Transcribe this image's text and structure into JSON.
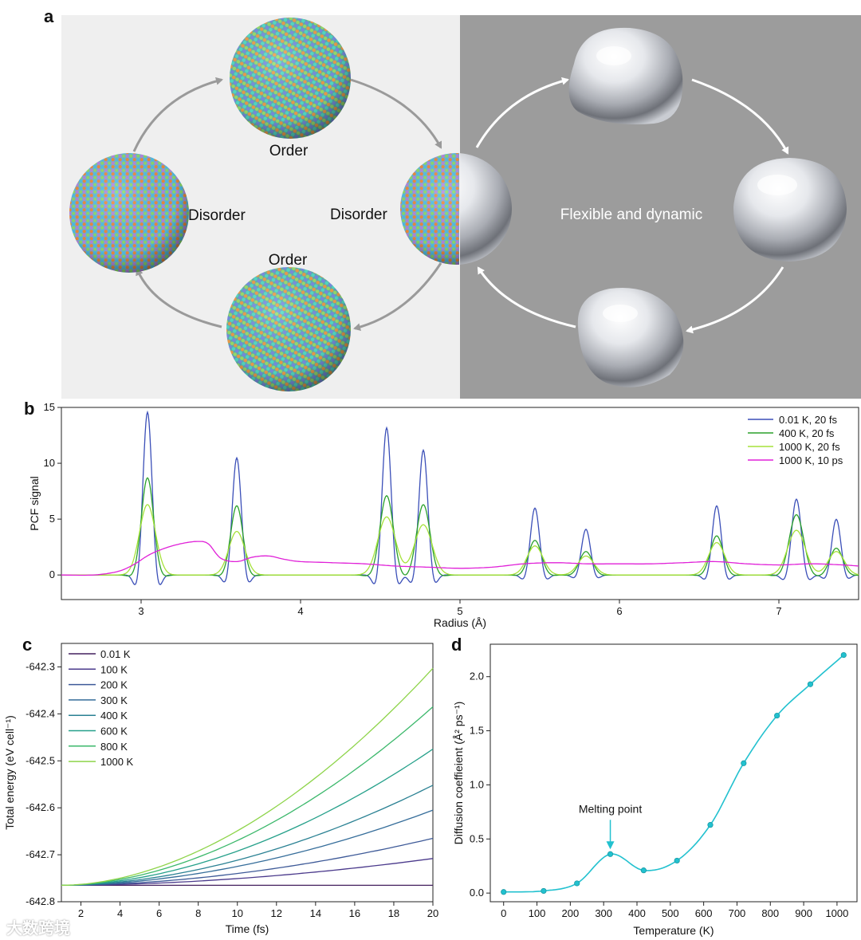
{
  "panels": {
    "a": {
      "letter": "a",
      "labels": {
        "order_top": "Order",
        "order_bottom": "Order",
        "disorder_left": "Disorder",
        "disorder_center": "Disorder",
        "flexible": "Flexible and dynamic"
      },
      "colors": {
        "left_bg": "#efefef",
        "right_bg": "#9c9c9c",
        "arrow_left": "#9a9a9a",
        "arrow_right": "#ffffff"
      }
    },
    "b": {
      "letter": "b"
    },
    "c": {
      "letter": "c"
    },
    "d": {
      "letter": "d"
    }
  },
  "watermark": "大数跨境",
  "chart_data": [
    {
      "id": "b",
      "type": "line",
      "title": "",
      "xlabel": "Radius (Å)",
      "ylabel": "PCF signal",
      "xlim": [
        2.5,
        7.5
      ],
      "ylim": [
        -2.2,
        15
      ],
      "xticks": [
        3,
        4,
        5,
        6,
        7
      ],
      "yticks": [
        0,
        5,
        10,
        15
      ],
      "legend_position": "top-right",
      "series": [
        {
          "name": "0.01  K, 20 fs",
          "color": "#3b4fb8",
          "peaks": [
            [
              3.04,
              14.6,
              0.028
            ],
            [
              3.6,
              10.5,
              0.028
            ],
            [
              4.54,
              13.2,
              0.028
            ],
            [
              4.77,
              11.2,
              0.028
            ],
            [
              5.47,
              6.0,
              0.028
            ],
            [
              5.79,
              4.1,
              0.028
            ],
            [
              6.61,
              6.2,
              0.028
            ],
            [
              7.11,
              6.8,
              0.03
            ],
            [
              7.36,
              5.0,
              0.028
            ]
          ],
          "undershoot": 1.25
        },
        {
          "name": "400   K, 20 fs",
          "color": "#2aa12a",
          "peaks": [
            [
              3.04,
              8.7,
              0.038
            ],
            [
              3.6,
              6.2,
              0.038
            ],
            [
              4.54,
              7.1,
              0.042
            ],
            [
              4.77,
              6.3,
              0.042
            ],
            [
              5.47,
              3.1,
              0.04
            ],
            [
              5.79,
              2.1,
              0.04
            ],
            [
              6.61,
              3.5,
              0.04
            ],
            [
              7.11,
              5.4,
              0.045
            ],
            [
              7.36,
              2.4,
              0.04
            ]
          ],
          "undershoot": 0.35
        },
        {
          "name": "1000 K, 20 fs",
          "color": "#a6e23a",
          "peaks": [
            [
              3.04,
              6.3,
              0.05
            ],
            [
              3.6,
              3.9,
              0.05
            ],
            [
              4.54,
              5.2,
              0.055
            ],
            [
              4.77,
              4.5,
              0.055
            ],
            [
              5.47,
              2.6,
              0.05
            ],
            [
              5.79,
              1.7,
              0.05
            ],
            [
              6.61,
              2.9,
              0.05
            ],
            [
              7.11,
              4.0,
              0.055
            ],
            [
              7.36,
              2.1,
              0.05
            ]
          ],
          "undershoot": 0.0
        },
        {
          "name": "1000 K, 10 ps",
          "color": "#e020d8",
          "x": [
            2.5,
            2.7,
            2.85,
            2.95,
            3.05,
            3.15,
            3.25,
            3.35,
            3.42,
            3.5,
            3.6,
            3.7,
            3.8,
            3.9,
            4.0,
            4.2,
            4.4,
            4.6,
            4.8,
            5.0,
            5.2,
            5.4,
            5.6,
            5.8,
            6.0,
            6.2,
            6.4,
            6.6,
            6.8,
            7.0,
            7.2,
            7.4,
            7.5
          ],
          "y": [
            0.0,
            0.0,
            0.3,
            0.9,
            1.8,
            2.4,
            2.8,
            3.0,
            2.8,
            1.5,
            1.2,
            1.6,
            1.7,
            1.4,
            1.2,
            1.1,
            1.0,
            0.8,
            0.7,
            0.6,
            0.7,
            1.0,
            1.1,
            1.0,
            1.0,
            1.0,
            1.1,
            1.2,
            1.0,
            0.9,
            1.0,
            0.9,
            0.8
          ]
        }
      ]
    },
    {
      "id": "c",
      "type": "line",
      "title": "",
      "xlabel": "Time (fs)",
      "ylabel": "Total energy (eV cell⁻¹)",
      "xlim": [
        1,
        20
      ],
      "ylim": [
        -642.8,
        -642.25
      ],
      "xticks": [
        2,
        4,
        6,
        8,
        10,
        12,
        14,
        16,
        18,
        20
      ],
      "yticks": [
        -642.8,
        -642.7,
        -642.6,
        -642.5,
        -642.4,
        -642.3
      ],
      "ytick_labels": [
        "-642.8",
        "-642.7",
        "-642.6",
        "-642.5",
        "-642.4",
        "-642.3"
      ],
      "legend_position": "top-left",
      "x_start": 1,
      "y_start": -642.765,
      "series": [
        {
          "name": "0.01  K",
          "color": "#44205f",
          "end": -642.765
        },
        {
          "name": "100    K",
          "color": "#4b3a8c",
          "end": -642.708
        },
        {
          "name": "200    K",
          "color": "#3e5a98",
          "end": -642.665
        },
        {
          "name": "300    K",
          "color": "#356d9a",
          "end": -642.605
        },
        {
          "name": "400    K",
          "color": "#2a8193",
          "end": -642.552
        },
        {
          "name": "600    K",
          "color": "#25a08a",
          "end": -642.475
        },
        {
          "name": "800    K",
          "color": "#3bb86b",
          "end": -642.385
        },
        {
          "name": "1000  K",
          "color": "#8ed44a",
          "end": -642.303
        }
      ]
    },
    {
      "id": "d",
      "type": "line",
      "title": "",
      "xlabel": "Temperature (K)",
      "ylabel": "Diffusion coeffieient (Å² ps⁻¹)",
      "xlim": [
        -40,
        1060
      ],
      "ylim": [
        -0.08,
        2.3
      ],
      "xticks": [
        0,
        100,
        200,
        300,
        400,
        500,
        600,
        700,
        800,
        900,
        1000
      ],
      "yticks": [
        0.0,
        0.5,
        1.0,
        1.5,
        2.0
      ],
      "ytick_labels": [
        "0.0",
        "0.5",
        "1.0",
        "1.5",
        "2.0"
      ],
      "annotation": {
        "text": "Melting point",
        "x": 320,
        "y": 0.36
      },
      "series": [
        {
          "name": "Diffusion",
          "color": "#22c1cf",
          "x": [
            0,
            120,
            220,
            320,
            420,
            520,
            620,
            720,
            820,
            920,
            1020
          ],
          "y": [
            0.01,
            0.02,
            0.09,
            0.36,
            0.21,
            0.3,
            0.63,
            1.2,
            1.64,
            1.93,
            2.2
          ]
        }
      ]
    }
  ]
}
